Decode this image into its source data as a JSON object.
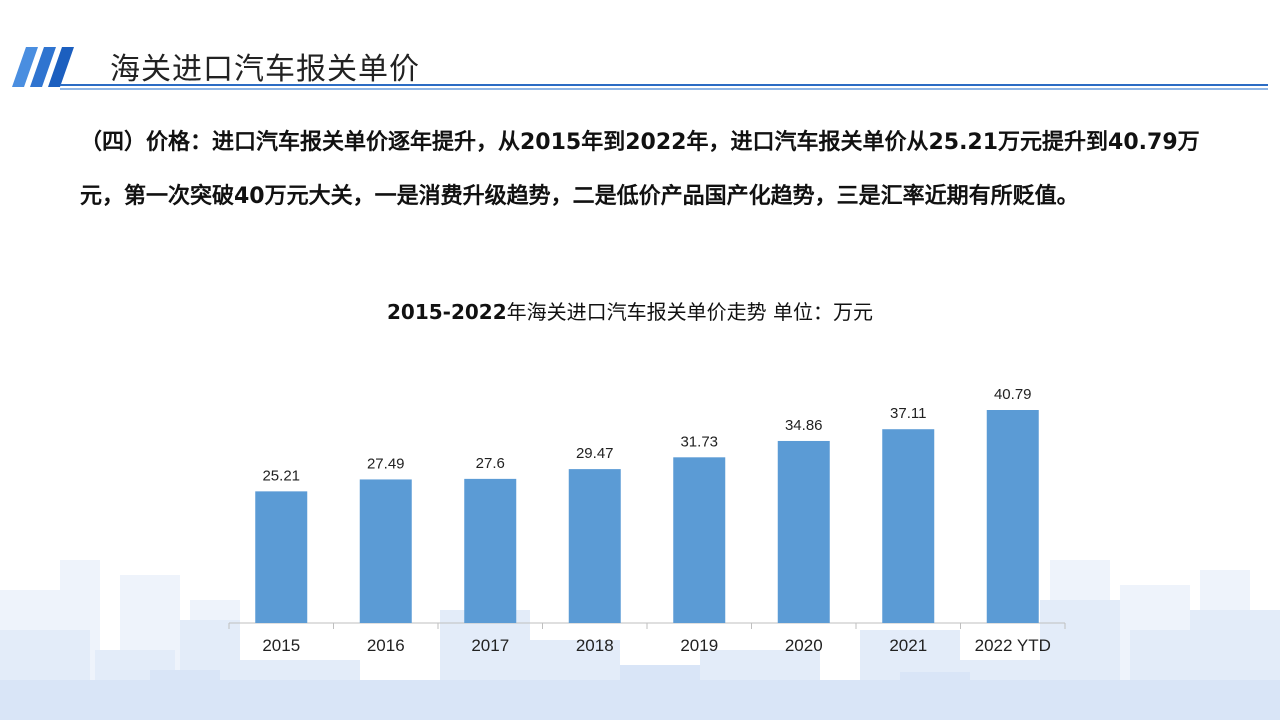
{
  "header": {
    "title": "海关进口汽车报关单价"
  },
  "intro": {
    "text": "（四）价格：进口汽车报关单价逐年提升，从2015年到2022年，进口汽车报关单价从25.21万元提升到40.79万元，第一次突破40万元大关，一是消费升级趋势，二是低价产品国产化趋势，三是汇率近期有所贬值。"
  },
  "colors": {
    "bar": "#5b9bd5",
    "accent": "#2b6cc4",
    "skyline": "#e6eefa"
  },
  "chart_data": {
    "type": "bar",
    "title": "2015-2022年海关进口汽车报关单价走势 单位：万元",
    "title_bold_part": "2015-2022",
    "title_rest": "年海关进口汽车报关单价走势 单位：万元",
    "categories": [
      "2015",
      "2016",
      "2017",
      "2018",
      "2019",
      "2020",
      "2021",
      "2022 YTD"
    ],
    "values": [
      25.21,
      27.49,
      27.6,
      29.47,
      31.73,
      34.86,
      37.11,
      40.79
    ],
    "value_labels": [
      "25.21",
      "27.49",
      "27.6",
      "29.47",
      "31.73",
      "34.86",
      "37.11",
      "40.79"
    ],
    "xlabel": "",
    "ylabel": "",
    "ylim": [
      0,
      40.79
    ],
    "grid": false,
    "legend": "none"
  }
}
